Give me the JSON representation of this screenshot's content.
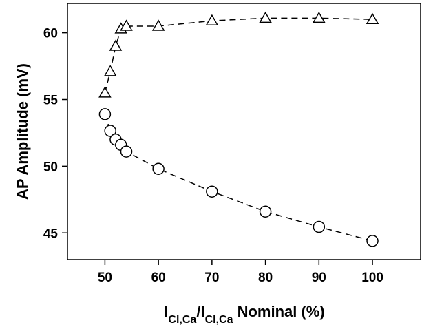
{
  "chart_data": {
    "type": "line",
    "y_label": "AP Amplitude (mV)",
    "x_label": [
      {
        "text": "I",
        "sub": false
      },
      {
        "text": "Cl,Ca",
        "sub": true
      },
      {
        "text": "/I",
        "sub": false
      },
      {
        "text": "Cl,Ca",
        "sub": true
      },
      {
        "text": " Nominal (%)",
        "sub": false
      }
    ],
    "series": [
      {
        "marker": "triangle",
        "color": "#000000",
        "x": [
          50,
          51,
          52,
          53,
          54,
          60,
          70,
          80,
          90,
          100
        ],
        "values": [
          55.5,
          57.1,
          59.0,
          60.3,
          60.5,
          60.5,
          60.9,
          61.1,
          61.1,
          61.0
        ]
      },
      {
        "marker": "circle",
        "color": "#000000",
        "x": [
          50,
          51,
          52,
          53,
          54,
          60,
          70,
          80,
          90,
          100
        ],
        "values": [
          53.9,
          52.65,
          52.0,
          51.6,
          51.1,
          49.8,
          48.1,
          46.6,
          45.45,
          44.4
        ]
      }
    ],
    "xlim": [
      43,
      109
    ],
    "xticks": [
      50,
      60,
      70,
      80,
      90,
      100
    ],
    "ylim": [
      43,
      62.2
    ],
    "yticks": [
      45,
      50,
      55,
      60
    ],
    "line_style": "dashed"
  }
}
